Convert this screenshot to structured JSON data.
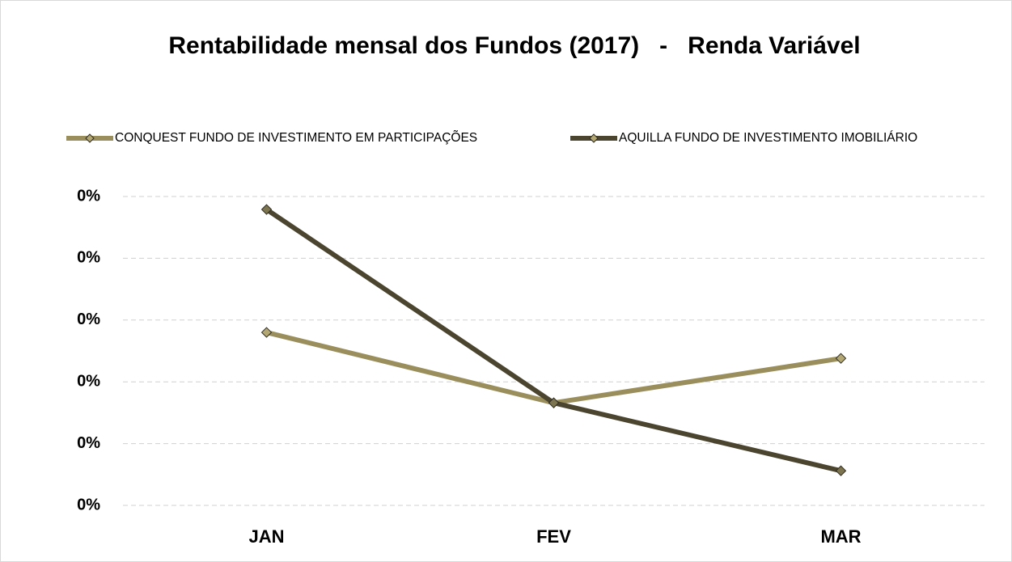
{
  "chart_data": {
    "type": "line",
    "title": "Rentabilidade mensal dos Fundos (2017)   -   Renda Variável",
    "categories": [
      "JAN",
      "FEV",
      "MAR"
    ],
    "series": [
      {
        "name": "CONQUEST FUNDO DE INVESTIMENTO EM PARTICIPAÇÕES",
        "color": "#9a8f5c",
        "values": [
          0.0028,
          0.00166,
          0.00238
        ]
      },
      {
        "name": "AQUILLA FUNDO DE INVESTIMENTO IMOBILIÁRIO",
        "color": "#4b4530",
        "values": [
          0.00479,
          0.00166,
          0.00056
        ]
      }
    ],
    "ylim": [
      0,
      0.005
    ],
    "yticks": [
      {
        "value": 0,
        "label": "0%"
      },
      {
        "value": 0.001,
        "label": "0%"
      },
      {
        "value": 0.002,
        "label": "0%"
      },
      {
        "value": 0.003,
        "label": "0%"
      },
      {
        "value": 0.004,
        "label": "0%"
      },
      {
        "value": 0.005,
        "label": "0%"
      }
    ],
    "grid": true,
    "legend": "top"
  }
}
